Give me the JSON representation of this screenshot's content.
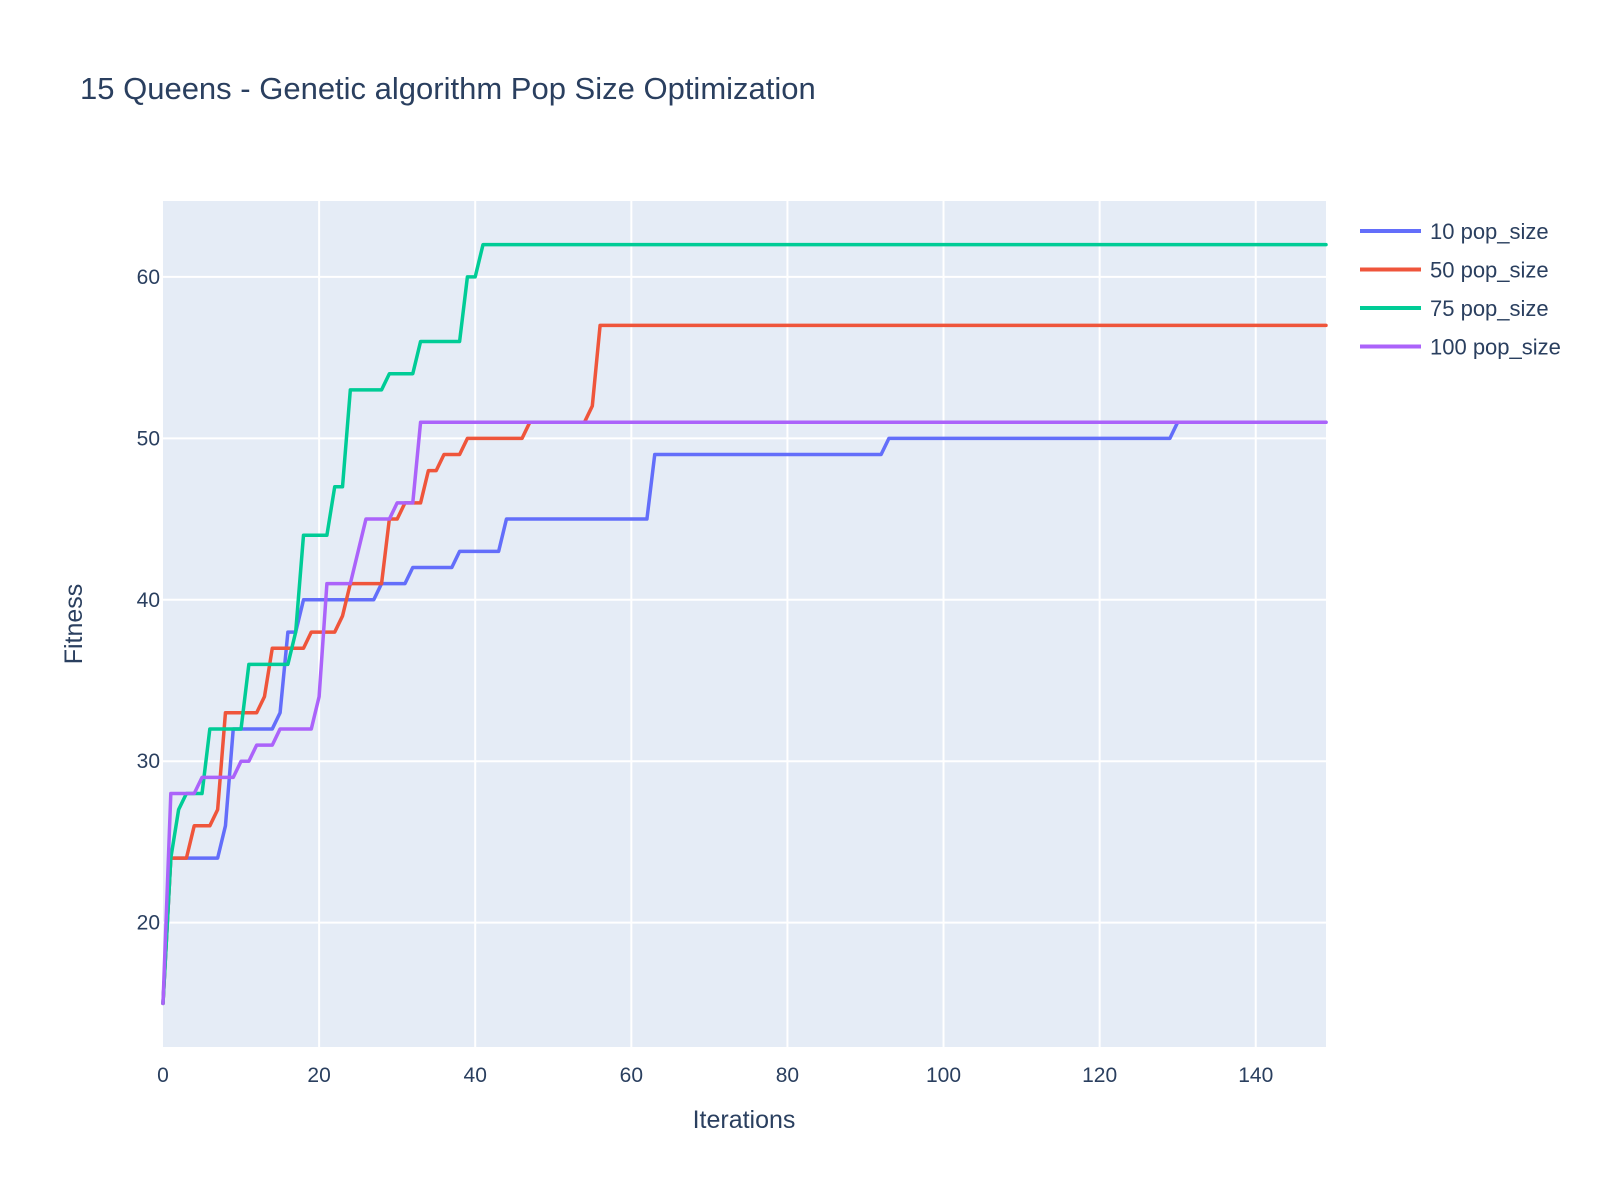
{
  "chart_data": {
    "type": "line",
    "title": "15 Queens - Genetic algorithm Pop Size Optimization",
    "xlabel": "Iterations",
    "ylabel": "Fitness",
    "xlim": [
      0,
      149
    ],
    "ylim": [
      12.3,
      64.7
    ],
    "x_ticks": [
      0,
      20,
      40,
      60,
      80,
      100,
      120,
      140
    ],
    "y_ticks": [
      20,
      30,
      40,
      50,
      60
    ],
    "grid": true,
    "legend_position": "top-right",
    "plot_background": "#e5ecf6",
    "series": [
      {
        "name": "10 pop_size",
        "color": "#636efa",
        "points": [
          [
            0,
            15
          ],
          [
            1,
            24
          ],
          [
            7,
            24
          ],
          [
            8,
            26
          ],
          [
            9,
            32
          ],
          [
            14,
            32
          ],
          [
            15,
            33
          ],
          [
            16,
            38
          ],
          [
            17,
            38
          ],
          [
            18,
            40
          ],
          [
            27,
            40
          ],
          [
            28,
            41
          ],
          [
            31,
            41
          ],
          [
            32,
            42
          ],
          [
            37,
            42
          ],
          [
            38,
            43
          ],
          [
            43,
            43
          ],
          [
            44,
            45
          ],
          [
            62,
            45
          ],
          [
            63,
            49
          ],
          [
            92,
            49
          ],
          [
            93,
            50
          ],
          [
            129,
            50
          ],
          [
            130,
            51
          ],
          [
            149,
            51
          ]
        ]
      },
      {
        "name": "50 pop_size",
        "color": "#ef553b",
        "points": [
          [
            0,
            15
          ],
          [
            1,
            24
          ],
          [
            3,
            24
          ],
          [
            4,
            26
          ],
          [
            6,
            26
          ],
          [
            7,
            27
          ],
          [
            8,
            33
          ],
          [
            12,
            33
          ],
          [
            13,
            34
          ],
          [
            14,
            37
          ],
          [
            17,
            37
          ],
          [
            18,
            37
          ],
          [
            19,
            38
          ],
          [
            22,
            38
          ],
          [
            23,
            39
          ],
          [
            24,
            41
          ],
          [
            28,
            41
          ],
          [
            29,
            45
          ],
          [
            30,
            45
          ],
          [
            31,
            46
          ],
          [
            33,
            46
          ],
          [
            34,
            48
          ],
          [
            35,
            48
          ],
          [
            36,
            49
          ],
          [
            38,
            49
          ],
          [
            39,
            50
          ],
          [
            46,
            50
          ],
          [
            47,
            51
          ],
          [
            54,
            51
          ],
          [
            55,
            52
          ],
          [
            56,
            57
          ],
          [
            149,
            57
          ]
        ]
      },
      {
        "name": "75 pop_size",
        "color": "#00cc96",
        "points": [
          [
            0,
            15
          ],
          [
            1,
            24
          ],
          [
            2,
            27
          ],
          [
            3,
            28
          ],
          [
            5,
            28
          ],
          [
            6,
            32
          ],
          [
            10,
            32
          ],
          [
            11,
            36
          ],
          [
            16,
            36
          ],
          [
            17,
            38
          ],
          [
            18,
            44
          ],
          [
            21,
            44
          ],
          [
            22,
            47
          ],
          [
            23,
            47
          ],
          [
            24,
            53
          ],
          [
            28,
            53
          ],
          [
            29,
            54
          ],
          [
            32,
            54
          ],
          [
            33,
            56
          ],
          [
            38,
            56
          ],
          [
            39,
            60
          ],
          [
            40,
            60
          ],
          [
            41,
            62
          ],
          [
            149,
            62
          ]
        ]
      },
      {
        "name": "100 pop_size",
        "color": "#ab63fa",
        "points": [
          [
            0,
            15
          ],
          [
            1,
            28
          ],
          [
            4,
            28
          ],
          [
            5,
            29
          ],
          [
            9,
            29
          ],
          [
            10,
            30
          ],
          [
            11,
            30
          ],
          [
            12,
            31
          ],
          [
            14,
            31
          ],
          [
            15,
            32
          ],
          [
            19,
            32
          ],
          [
            20,
            34
          ],
          [
            21,
            41
          ],
          [
            24,
            41
          ],
          [
            26,
            45
          ],
          [
            29,
            45
          ],
          [
            30,
            46
          ],
          [
            32,
            46
          ],
          [
            33,
            51
          ],
          [
            149,
            51
          ]
        ]
      }
    ]
  }
}
